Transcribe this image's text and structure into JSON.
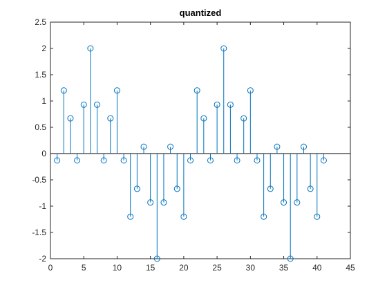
{
  "chart_data": {
    "type": "stem",
    "title": "quantized",
    "xlabel": "",
    "ylabel": "",
    "xlim": [
      0,
      45
    ],
    "ylim": [
      -2,
      2.5
    ],
    "xticks": [
      0,
      5,
      10,
      15,
      20,
      25,
      30,
      35,
      40,
      45
    ],
    "xtick_labels": [
      "0",
      "5",
      "10",
      "15",
      "20",
      "25",
      "30",
      "35",
      "40",
      "45"
    ],
    "yticks": [
      -2,
      -1.5,
      -1,
      -0.5,
      0,
      0.5,
      1,
      1.5,
      2,
      2.5
    ],
    "ytick_labels": [
      "-2",
      "-1.5",
      "-1",
      "-0.5",
      "0",
      "0.5",
      "1",
      "1.5",
      "2",
      "2.5"
    ],
    "grid": false,
    "series": [
      {
        "color": "#0072BD",
        "marker": "circle",
        "x": [
          1,
          2,
          3,
          4,
          5,
          6,
          7,
          8,
          9,
          10,
          11,
          12,
          13,
          14,
          15,
          16,
          17,
          18,
          19,
          20,
          21,
          22,
          23,
          24,
          25,
          26,
          27,
          28,
          29,
          30,
          31,
          32,
          33,
          34,
          35,
          36,
          37,
          38,
          39,
          40,
          41
        ],
        "values": [
          -0.13,
          1.2,
          0.67,
          -0.13,
          0.93,
          2,
          0.93,
          -0.13,
          0.67,
          1.2,
          -0.13,
          -1.2,
          -0.67,
          0.13,
          -0.93,
          -2,
          -0.93,
          0.13,
          -0.67,
          -1.2,
          -0.13,
          1.2,
          0.67,
          -0.13,
          0.93,
          2,
          0.93,
          -0.13,
          0.67,
          1.2,
          -0.13,
          -1.2,
          -0.67,
          0.13,
          -0.93,
          -2,
          -0.93,
          0.13,
          -0.67,
          -1.2,
          -0.13
        ]
      }
    ]
  },
  "colors": {
    "stem": "#0072BD",
    "axes": "#262626",
    "background": "#ffffff"
  }
}
